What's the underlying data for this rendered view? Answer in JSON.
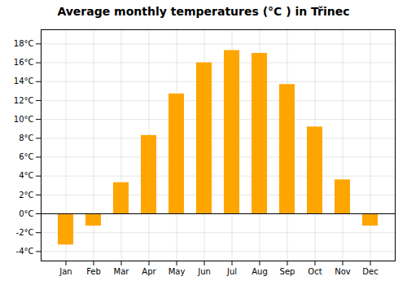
{
  "chart_data": {
    "type": "bar",
    "title": "Average monthly temperatures (°C ) in Třinec",
    "categories": [
      "Jan",
      "Feb",
      "Mar",
      "Apr",
      "May",
      "Jun",
      "Jul",
      "Aug",
      "Sep",
      "Oct",
      "Nov",
      "Dec"
    ],
    "values": [
      -3.3,
      -1.3,
      3.3,
      8.3,
      12.7,
      16.0,
      17.3,
      17.0,
      13.7,
      9.2,
      3.6,
      -1.3
    ],
    "color": "#FFA500",
    "ylim": [
      -5,
      19.5
    ],
    "yticks": [
      {
        "value": -4,
        "label": "-4°C"
      },
      {
        "value": -2,
        "label": "-2°C"
      },
      {
        "value": 0,
        "label": "0°C"
      },
      {
        "value": 2,
        "label": "2°C"
      },
      {
        "value": 4,
        "label": "4°C"
      },
      {
        "value": 6,
        "label": "6°C"
      },
      {
        "value": 8,
        "label": "8°C"
      },
      {
        "value": 10,
        "label": "10°C"
      },
      {
        "value": 12,
        "label": "12°C"
      },
      {
        "value": 14,
        "label": "14°C"
      },
      {
        "value": 16,
        "label": "16°C"
      },
      {
        "value": 18,
        "label": "18°C"
      }
    ],
    "grid": true
  }
}
